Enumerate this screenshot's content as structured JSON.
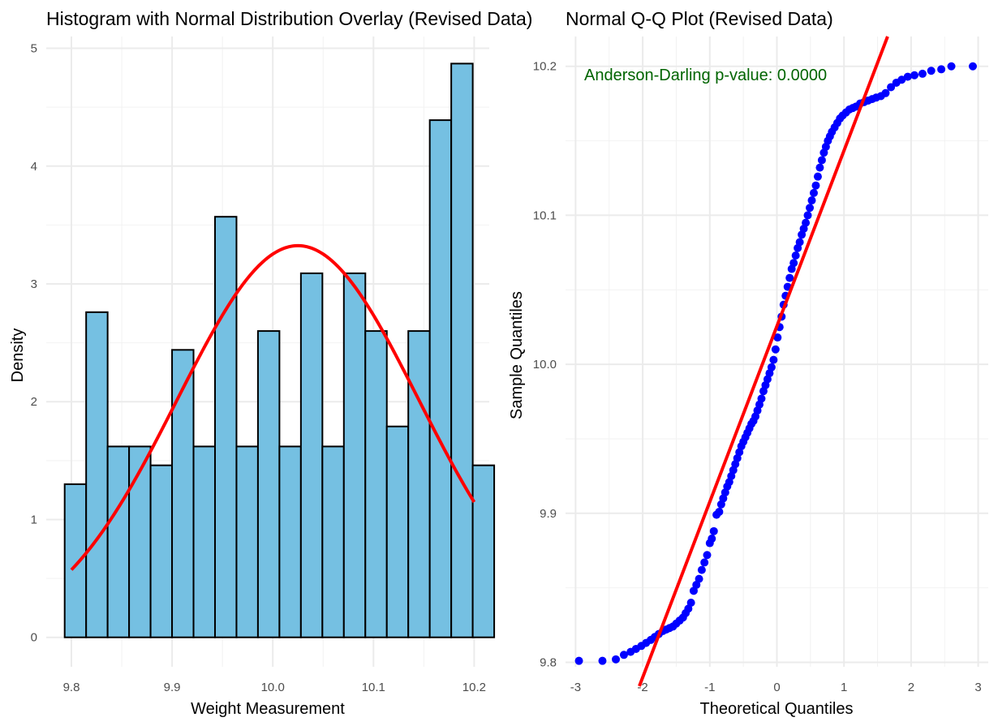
{
  "chart_data": [
    {
      "type": "bar",
      "title": "Histogram with Normal Distribution Overlay (Revised Data)",
      "xlabel": "Weight Measurement",
      "ylabel": "Density",
      "xlim": [
        9.775,
        10.215
      ],
      "ylim": [
        -0.25,
        5.1
      ],
      "x_ticks": [
        "9.8",
        "9.9",
        "10.0",
        "10.1",
        "10.2"
      ],
      "x_tick_values": [
        9.8,
        9.9,
        10.0,
        10.1,
        10.2
      ],
      "y_ticks": [
        "0",
        "1",
        "2",
        "3",
        "4",
        "5"
      ],
      "y_tick_values": [
        0,
        1,
        2,
        3,
        4,
        5
      ],
      "grid": true,
      "bin_width": 0.02133,
      "bins_start": 9.7933,
      "bar_fill": "#75C0E2",
      "bar_edge": "#000000",
      "bar_values": [
        1.3,
        2.76,
        1.62,
        1.62,
        1.46,
        2.44,
        1.62,
        3.57,
        1.62,
        2.6,
        1.62,
        3.09,
        1.62,
        3.09,
        2.6,
        1.79,
        2.6,
        4.39,
        4.87,
        1.46
      ],
      "overlay": {
        "name": "Normal density",
        "color": "#FF0000",
        "mean": 10.025,
        "sd": 0.12,
        "x_range": [
          9.8,
          10.2
        ]
      }
    },
    {
      "type": "scatter",
      "title": "Normal Q-Q Plot (Revised Data)",
      "xlabel": "Theoretical Quantiles",
      "ylabel": "Sample Quantiles",
      "xlim": [
        -3.15,
        3.15
      ],
      "ylim": [
        9.797,
        10.22
      ],
      "x_ticks": [
        "-3",
        "-2",
        "-1",
        "0",
        "1",
        "2",
        "3"
      ],
      "x_tick_values": [
        -3,
        -2,
        -1,
        0,
        1,
        2,
        3
      ],
      "y_ticks": [
        "9.8",
        "9.9",
        "10.0",
        "10.1",
        "10.2"
      ],
      "y_tick_values": [
        9.8,
        9.9,
        10.0,
        10.1,
        10.2
      ],
      "grid": true,
      "point_color": "#0000FF",
      "line_color": "#FF0000",
      "annotation": {
        "text": "Anderson-Darling p-value: 0.0000",
        "color": "#006400"
      },
      "reference_line": {
        "x1": -2.05,
        "y1": 9.784,
        "x2": 1.65,
        "y2": 10.22
      },
      "points": [
        [
          -2.95,
          9.801
        ],
        [
          -2.6,
          9.801
        ],
        [
          -2.4,
          9.802
        ],
        [
          -2.28,
          9.805
        ],
        [
          -2.18,
          9.807
        ],
        [
          -2.1,
          9.809
        ],
        [
          -2.02,
          9.811
        ],
        [
          -1.95,
          9.813
        ],
        [
          -1.88,
          9.815
        ],
        [
          -1.82,
          9.817
        ],
        [
          -1.76,
          9.819
        ],
        [
          -1.7,
          9.821
        ],
        [
          -1.65,
          9.822
        ],
        [
          -1.6,
          9.823
        ],
        [
          -1.55,
          9.824
        ],
        [
          -1.5,
          9.826
        ],
        [
          -1.45,
          9.828
        ],
        [
          -1.4,
          9.83
        ],
        [
          -1.36,
          9.833
        ],
        [
          -1.32,
          9.836
        ],
        [
          -1.28,
          9.84
        ],
        [
          -1.24,
          9.848
        ],
        [
          -1.2,
          9.852
        ],
        [
          -1.16,
          9.856
        ],
        [
          -1.12,
          9.862
        ],
        [
          -1.08,
          9.867
        ],
        [
          -1.04,
          9.872
        ],
        [
          -1.0,
          9.88
        ],
        [
          -0.97,
          9.883
        ],
        [
          -0.94,
          9.888
        ],
        [
          -0.9,
          9.899
        ],
        [
          -0.86,
          9.901
        ],
        [
          -0.83,
          9.906
        ],
        [
          -0.8,
          9.91
        ],
        [
          -0.77,
          9.914
        ],
        [
          -0.74,
          9.918
        ],
        [
          -0.71,
          9.921
        ],
        [
          -0.68,
          9.925
        ],
        [
          -0.65,
          9.929
        ],
        [
          -0.62,
          9.933
        ],
        [
          -0.59,
          9.937
        ],
        [
          -0.56,
          9.941
        ],
        [
          -0.53,
          9.945
        ],
        [
          -0.5,
          9.948
        ],
        [
          -0.47,
          9.951
        ],
        [
          -0.44,
          9.954
        ],
        [
          -0.41,
          9.957
        ],
        [
          -0.38,
          9.96
        ],
        [
          -0.35,
          9.962
        ],
        [
          -0.32,
          9.965
        ],
        [
          -0.29,
          9.969
        ],
        [
          -0.26,
          9.973
        ],
        [
          -0.23,
          9.977
        ],
        [
          -0.2,
          9.982
        ],
        [
          -0.17,
          9.986
        ],
        [
          -0.14,
          9.99
        ],
        [
          -0.11,
          9.994
        ],
        [
          -0.08,
          9.998
        ],
        [
          -0.05,
          10.003
        ],
        [
          -0.02,
          10.01
        ],
        [
          0.01,
          10.018
        ],
        [
          0.04,
          10.025
        ],
        [
          0.07,
          10.032
        ],
        [
          0.1,
          10.04
        ],
        [
          0.13,
          10.046
        ],
        [
          0.16,
          10.052
        ],
        [
          0.19,
          10.058
        ],
        [
          0.22,
          10.064
        ],
        [
          0.25,
          10.068
        ],
        [
          0.28,
          10.073
        ],
        [
          0.31,
          10.078
        ],
        [
          0.34,
          10.082
        ],
        [
          0.37,
          10.087
        ],
        [
          0.4,
          10.091
        ],
        [
          0.43,
          10.095
        ],
        [
          0.46,
          10.1
        ],
        [
          0.49,
          10.105
        ],
        [
          0.52,
          10.11
        ],
        [
          0.55,
          10.115
        ],
        [
          0.58,
          10.12
        ],
        [
          0.61,
          10.126
        ],
        [
          0.64,
          10.132
        ],
        [
          0.67,
          10.137
        ],
        [
          0.7,
          10.142
        ],
        [
          0.73,
          10.146
        ],
        [
          0.76,
          10.15
        ],
        [
          0.79,
          10.153
        ],
        [
          0.82,
          10.156
        ],
        [
          0.86,
          10.159
        ],
        [
          0.9,
          10.162
        ],
        [
          0.94,
          10.165
        ],
        [
          0.98,
          10.167
        ],
        [
          1.03,
          10.169
        ],
        [
          1.08,
          10.171
        ],
        [
          1.13,
          10.172
        ],
        [
          1.18,
          10.173
        ],
        [
          1.24,
          10.175
        ],
        [
          1.3,
          10.176
        ],
        [
          1.36,
          10.177
        ],
        [
          1.42,
          10.178
        ],
        [
          1.48,
          10.179
        ],
        [
          1.55,
          10.18
        ],
        [
          1.62,
          10.182
        ],
        [
          1.7,
          10.186
        ],
        [
          1.78,
          10.189
        ],
        [
          1.86,
          10.191
        ],
        [
          1.95,
          10.193
        ],
        [
          2.05,
          10.194
        ],
        [
          2.17,
          10.195
        ],
        [
          2.3,
          10.197
        ],
        [
          2.45,
          10.198
        ],
        [
          2.6,
          10.2
        ],
        [
          2.92,
          10.2
        ]
      ]
    }
  ]
}
